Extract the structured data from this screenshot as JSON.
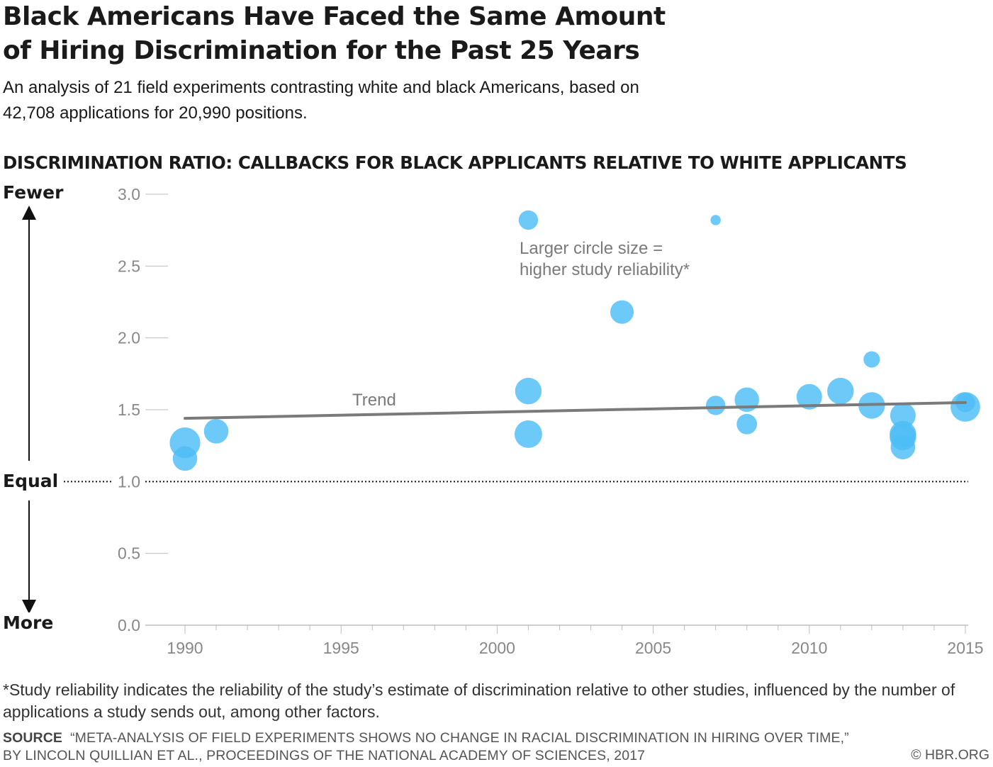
{
  "header": {
    "title": "Black Americans Have Faced the Same Amount of Hiring Discrimination for the Past 25 Years",
    "subtitle": "An analysis of 21 field experiments contrasting white and black Americans, based on 42,708 applications for 20,990 positions."
  },
  "chart_heading": "DISCRIMINATION RATIO: CALLBACKS FOR BLACK APPLICANTS RELATIVE TO WHITE APPLICANTS",
  "side_labels": {
    "top": "Fewer",
    "middle": "Equal",
    "bottom": "More"
  },
  "footnote": "*Study reliability indicates the reliability of the study’s estimate of discrimination relative to other studies, influenced by the number of applications a study sends out, among other factors.",
  "source": {
    "label": "SOURCE",
    "line1": "“META-ANALYSIS OF FIELD EXPERIMENTS SHOWS NO CHANGE IN RACIAL DISCRIMINATION IN HIRING OVER TIME,”",
    "line2": "BY LINCOLN QUILLIAN ET AL., PROCEEDINGS OF THE NATIONAL ACADEMY OF SCIENCES, 2017"
  },
  "copyright": "© HBR.ORG",
  "colors": {
    "bubble": "#4dbdf5",
    "trend": "#7a7a7a",
    "axis": "#bdbdbd",
    "tick_label": "#888888"
  },
  "chart_data": {
    "type": "scatter",
    "title": "DISCRIMINATION RATIO: CALLBACKS FOR BLACK APPLICANTS RELATIVE TO WHITE APPLICANTS",
    "xlabel": "",
    "ylabel": "",
    "xlim": [
      1989,
      2015
    ],
    "ylim": [
      0,
      3
    ],
    "x_ticks": [
      1990,
      1995,
      2000,
      2005,
      2010,
      2015
    ],
    "y_ticks": [
      0.0,
      0.5,
      1.0,
      1.5,
      2.0,
      2.5,
      3.0
    ],
    "reference_line": {
      "y": 1.0,
      "style": "dotted"
    },
    "size_legend": [
      "Larger circle size =",
      "higher study reliability*"
    ],
    "points": [
      {
        "x": 1990.0,
        "y": 1.27,
        "reliability": 3.0
      },
      {
        "x": 1990.0,
        "y": 1.16,
        "reliability": 2.4
      },
      {
        "x": 1991.0,
        "y": 1.35,
        "reliability": 2.4
      },
      {
        "x": 2001.0,
        "y": 2.82,
        "reliability": 1.9
      },
      {
        "x": 2001.0,
        "y": 1.63,
        "reliability": 2.6
      },
      {
        "x": 2001.0,
        "y": 1.33,
        "reliability": 2.7
      },
      {
        "x": 2004.0,
        "y": 2.18,
        "reliability": 2.3
      },
      {
        "x": 2007.0,
        "y": 2.82,
        "reliability": 1.0
      },
      {
        "x": 2007.0,
        "y": 1.53,
        "reliability": 1.9
      },
      {
        "x": 2008.0,
        "y": 1.57,
        "reliability": 2.4
      },
      {
        "x": 2008.0,
        "y": 1.4,
        "reliability": 2.0
      },
      {
        "x": 2010.0,
        "y": 1.59,
        "reliability": 2.5
      },
      {
        "x": 2011.0,
        "y": 1.63,
        "reliability": 2.6
      },
      {
        "x": 2012.0,
        "y": 1.85,
        "reliability": 1.6
      },
      {
        "x": 2012.0,
        "y": 1.53,
        "reliability": 2.6
      },
      {
        "x": 2013.0,
        "y": 1.46,
        "reliability": 2.5
      },
      {
        "x": 2013.0,
        "y": 1.33,
        "reliability": 2.6
      },
      {
        "x": 2013.0,
        "y": 1.31,
        "reliability": 2.6
      },
      {
        "x": 2013.0,
        "y": 1.24,
        "reliability": 2.4
      },
      {
        "x": 2015.0,
        "y": 1.52,
        "reliability": 2.9
      },
      {
        "x": 2015.0,
        "y": 1.55,
        "reliability": 1.9
      }
    ],
    "trend": {
      "label": "Trend",
      "start": {
        "x": 1990,
        "y": 1.44
      },
      "end": {
        "x": 2015,
        "y": 1.55
      }
    }
  }
}
